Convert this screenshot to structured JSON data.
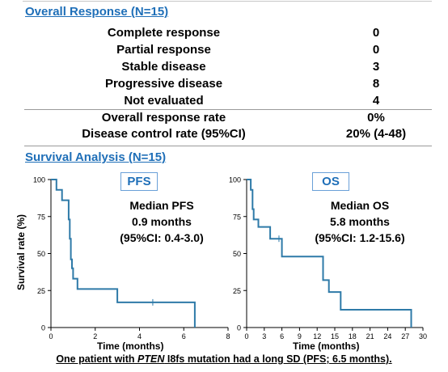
{
  "response_section": {
    "title": "Overall Response (N=15)",
    "rows": [
      {
        "label": "Complete response",
        "value": "0"
      },
      {
        "label": "Partial response",
        "value": "0"
      },
      {
        "label": "Stable disease",
        "value": "3"
      },
      {
        "label": "Progressive disease",
        "value": "8"
      },
      {
        "label": "Not evaluated",
        "value": "4"
      },
      {
        "label": "Overall response rate",
        "value": "0%"
      },
      {
        "label": "Disease control rate (95%CI)",
        "value": "20% (4-48)"
      }
    ]
  },
  "survival_section": {
    "title": "Survival Analysis (N=15)",
    "ylabel": "Survival rate (%)"
  },
  "pfs_panel": {
    "box_label": "PFS",
    "median_title": "Median PFS",
    "median_value": "0.9 months",
    "median_ci": "(95%CI: 0.4-3.0)",
    "xlabel": "Time (months)"
  },
  "os_panel": {
    "box_label": "OS",
    "median_title": "Median OS",
    "median_value": "5.8 months",
    "median_ci": "(95%CI: 1.2-15.6)",
    "xlabel": "Time (months)"
  },
  "footnote": {
    "prefix": "One patient with ",
    "gene": "PTEN",
    "suffix": " I8fs mutation had a long SD (PFS; 6.5 months)."
  },
  "chart_data": [
    {
      "type": "line",
      "series": [
        {
          "x": [
            0,
            0.25,
            0.25,
            0.5,
            0.5,
            0.8,
            0.8,
            0.85,
            0.85,
            0.9,
            0.9,
            0.95,
            0.95,
            1.0,
            1.0,
            1.2,
            1.2,
            3.0,
            3.0,
            6.5,
            6.5
          ],
          "y": [
            100,
            100,
            93,
            93,
            86,
            86,
            73,
            73,
            60,
            60,
            46,
            46,
            40,
            40,
            33,
            33,
            26,
            26,
            17,
            17,
            0
          ]
        }
      ],
      "censor_marks": [
        {
          "x": 4.6,
          "y": 17
        }
      ],
      "xlim": [
        0,
        8
      ],
      "ylim": [
        0,
        100
      ],
      "xticks": [
        0,
        2,
        4,
        6,
        8
      ],
      "yticks": [
        0,
        25,
        50,
        75,
        100
      ],
      "grid": false
    },
    {
      "type": "line",
      "series": [
        {
          "x": [
            0,
            0.7,
            0.7,
            1.0,
            1.0,
            1.2,
            1.2,
            2.0,
            2.0,
            4.0,
            4.0,
            6.0,
            6.0,
            13.0,
            13.0,
            14.0,
            14.0,
            16.0,
            16.0,
            28.0,
            28.0
          ],
          "y": [
            100,
            100,
            93,
            93,
            80,
            80,
            73,
            73,
            68,
            68,
            60,
            60,
            48,
            48,
            32,
            32,
            24,
            24,
            12,
            12,
            0
          ]
        }
      ],
      "censor_marks": [
        {
          "x": 5.5,
          "y": 60
        }
      ],
      "xlim": [
        0,
        30
      ],
      "ylim": [
        0,
        100
      ],
      "xticks": [
        0,
        3,
        6,
        9,
        12,
        15,
        18,
        21,
        24,
        27,
        30
      ],
      "yticks": [
        0,
        25,
        50,
        75,
        100
      ],
      "grid": false
    }
  ]
}
